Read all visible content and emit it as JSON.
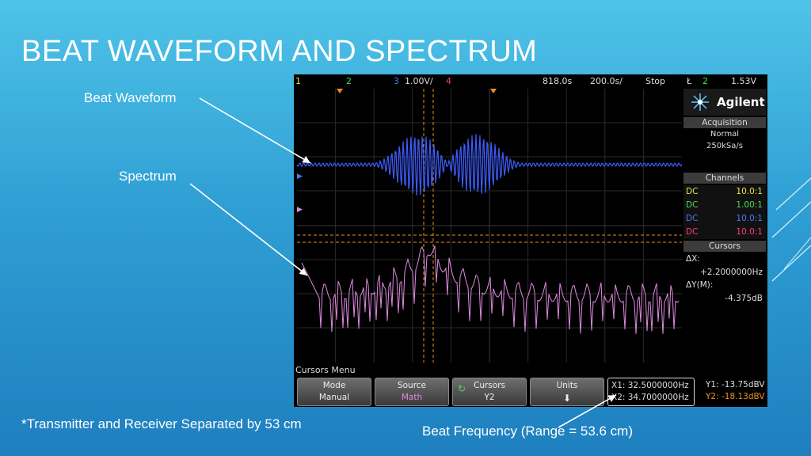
{
  "slide": {
    "title": "BEAT WAVEFORM AND SPECTRUM",
    "labels": {
      "beat_waveform": "Beat Waveform",
      "spectrum": "Spectrum",
      "footnote": "*Transmitter and Receiver Separated by 53 cm",
      "beat_frequency": "Beat Frequency (Range = 53.6 cm)"
    }
  },
  "scope": {
    "topbar": {
      "ch1": "1",
      "ch2": "2",
      "ch3": "3",
      "ch3_scale": "1.00V/",
      "ch4": "4",
      "delay": "818.0s",
      "timebase": "200.0s/",
      "run_state": "Stop",
      "trig_icon": "Ł",
      "trig_ch": "2",
      "trig_level": "1.53V"
    },
    "brand": "Agilent",
    "acquisition": {
      "title": "Acquisition",
      "mode": "Normal",
      "rate": "250kSa/s"
    },
    "channels": {
      "title": "Channels",
      "rows": [
        {
          "coupling": "DC",
          "ratio": "10.0:1",
          "color": "#e7e24b"
        },
        {
          "coupling": "DC",
          "ratio": "1.00:1",
          "color": "#4cdc4c"
        },
        {
          "coupling": "DC",
          "ratio": "10.0:1",
          "color": "#4a78ff"
        },
        {
          "coupling": "DC",
          "ratio": "10.0:1",
          "color": "#ff3d7a"
        }
      ]
    },
    "cursors_panel": {
      "title": "Cursors",
      "dx_label": "ΔX:",
      "dx_value": "+2.2000000Hz",
      "dy_label": "ΔY(M):",
      "dy_value": "-4.375dB"
    },
    "menu_title": "Cursors Menu",
    "softkeys": [
      {
        "top": "Mode",
        "bottom": "Manual",
        "icon": ""
      },
      {
        "top": "Source",
        "bottom": "Math",
        "icon": ""
      },
      {
        "top": "Cursors",
        "bottom": "Y2",
        "icon": "rotate-knob-icon"
      },
      {
        "top": "Units",
        "bottom": "",
        "icon": "down-arrow-icon"
      }
    ],
    "readouts": {
      "x1": "X1: 32.5000000Hz",
      "x2": "X2: 34.7000000Hz",
      "y1": "Y1: -13.75dBV",
      "y2": "Y2: -18.13dBV"
    },
    "colors": {
      "waveform": "#3d5cff",
      "spectrum": "#e08adf",
      "cursor": "#e89020"
    }
  }
}
